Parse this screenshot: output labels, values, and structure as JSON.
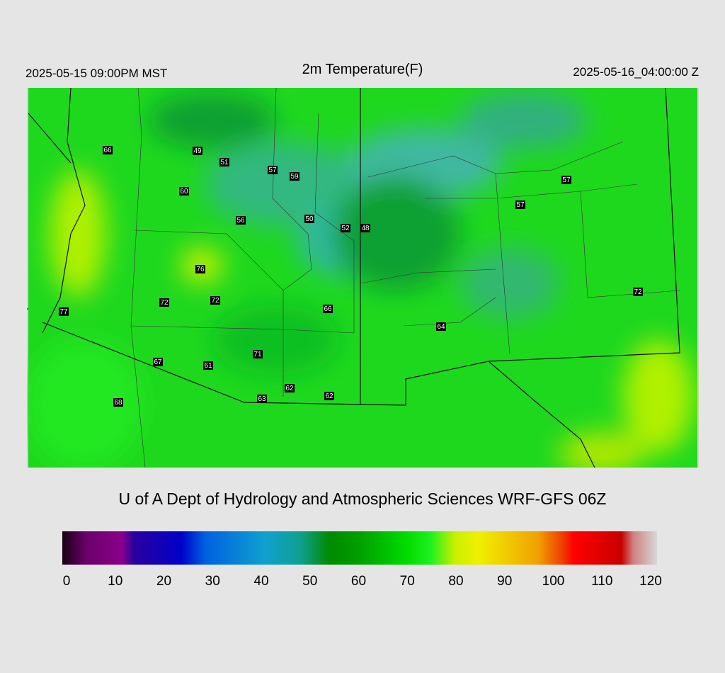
{
  "header": {
    "left": "2025-05-15 09:00PM MST",
    "title": "2m Temperature(F)",
    "right": "2025-05-16_04:00:00 Z"
  },
  "stations": [
    66,
    49,
    51,
    57,
    59,
    60,
    56,
    50,
    52,
    48,
    76,
    72,
    72,
    66,
    77,
    67,
    61,
    71,
    62,
    62,
    63,
    68,
    64,
    57,
    57,
    72
  ],
  "footer": {
    "credit": "U of A Dept of Hydrology and Atmospheric Sciences WRF-GFS 06Z"
  },
  "colorbar": {
    "ticks": [
      0,
      10,
      20,
      30,
      40,
      50,
      60,
      70,
      80,
      90,
      100,
      110,
      120
    ]
  }
}
